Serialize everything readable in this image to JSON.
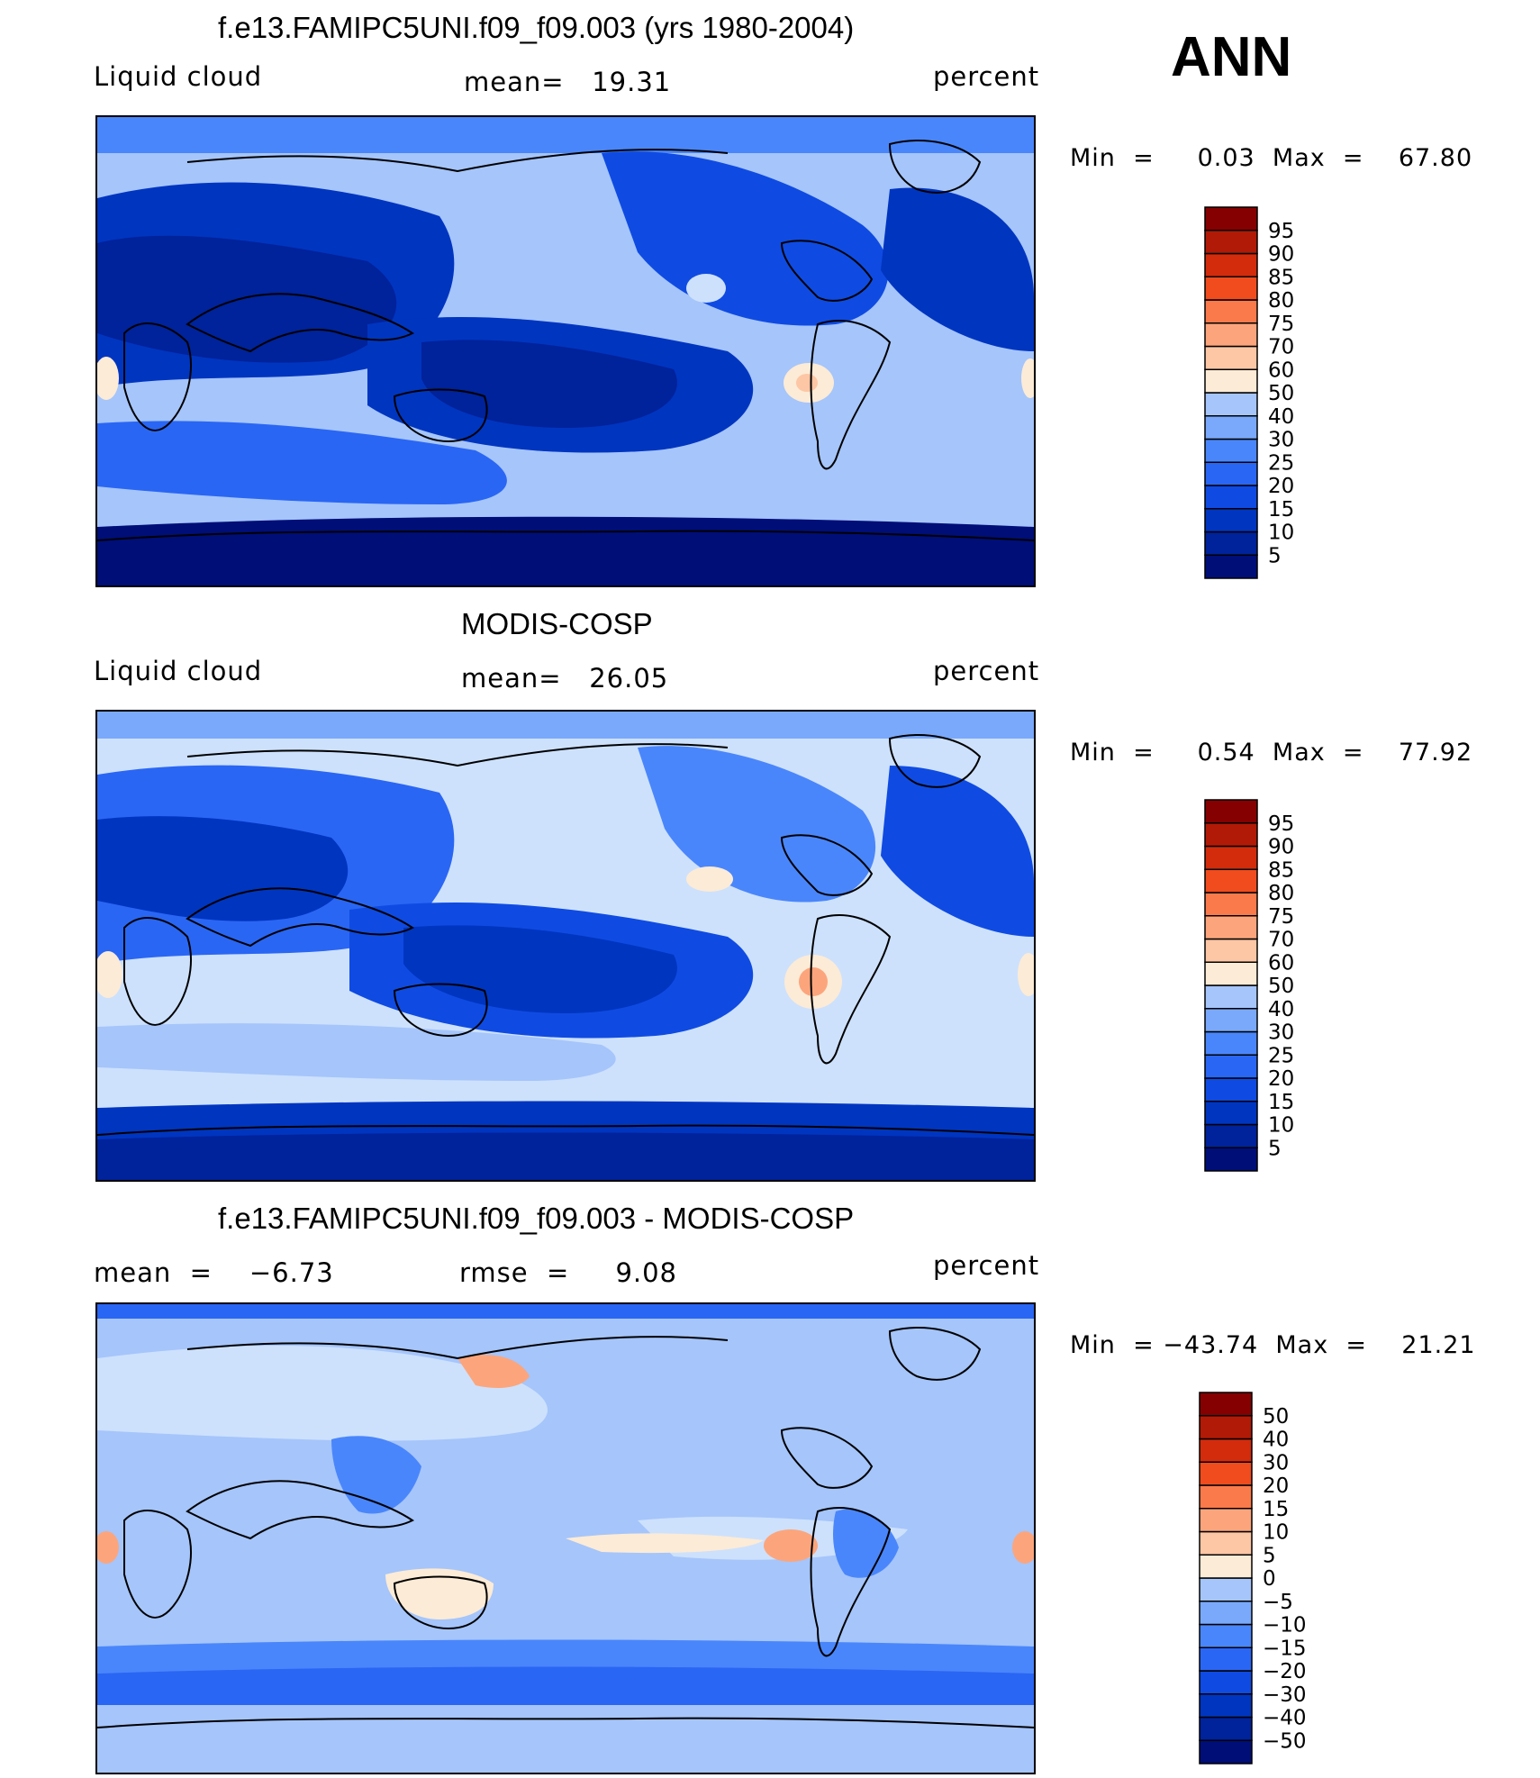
{
  "figure": {
    "season": "ANN",
    "colors": {
      "abs_scale": [
        "#000e78",
        "#00229a",
        "#0035c0",
        "#0f4be2",
        "#2a66f4",
        "#4a86fb",
        "#7aa9fb",
        "#a5c5fb",
        "#cde1fd",
        "#fcebd6",
        "#fdc6a4",
        "#fca57c",
        "#fb7a4b",
        "#f04c1d",
        "#d22c0c",
        "#b11a06",
        "#850000"
      ],
      "diff_scale": [
        "#000e78",
        "#00229a",
        "#0035c0",
        "#0f4be2",
        "#2a66f4",
        "#4a86fb",
        "#7aa9fb",
        "#a5c5fb",
        "#cde1fd",
        "#fcebd6",
        "#fdc6a4",
        "#fca57c",
        "#fb7a4b",
        "#f04c1d",
        "#d22c0c",
        "#b11a06",
        "#850000"
      ],
      "coastline": "#000000"
    }
  },
  "panels": [
    {
      "title": "f.e13.FAMIPC5UNI.f09_f09.003 (yrs 1980-2004)",
      "left_label": "Liquid cloud",
      "center_label": "mean=   19.31",
      "right_label": "percent",
      "minmax": "Min  =     0.03  Max  =    67.80",
      "colorbar_ticks": [
        "95",
        "90",
        "85",
        "80",
        "75",
        "70",
        "60",
        "50",
        "40",
        "30",
        "25",
        "20",
        "15",
        "10",
        "5"
      ]
    },
    {
      "title": "MODIS-COSP",
      "left_label": "Liquid cloud",
      "center_label": "mean=   26.05",
      "right_label": "percent",
      "minmax": "Min  =     0.54  Max  =    77.92",
      "colorbar_ticks": [
        "95",
        "90",
        "85",
        "80",
        "75",
        "70",
        "60",
        "50",
        "40",
        "30",
        "25",
        "20",
        "15",
        "10",
        "5"
      ]
    },
    {
      "title": "f.e13.FAMIPC5UNI.f09_f09.003 - MODIS-COSP",
      "left_label": "mean  =    −6.73",
      "center_label": "rmse  =     9.08",
      "right_label": "percent",
      "minmax": "Min  = −43.74  Max  =    21.21",
      "colorbar_ticks": [
        "50",
        "40",
        "30",
        "20",
        "15",
        "10",
        "5",
        "0",
        "−5",
        "−10",
        "−15",
        "−20",
        "−30",
        "−40",
        "−50"
      ]
    }
  ],
  "chart_data": [
    {
      "type": "heatmap",
      "title": "f.e13.FAMIPC5UNI.f09_f09.003 (yrs 1980-2004)",
      "variable": "Liquid cloud",
      "units": "percent",
      "mean": 19.31,
      "min": 0.03,
      "max": 67.8,
      "contour_levels": [
        5,
        10,
        15,
        20,
        25,
        30,
        40,
        50,
        60,
        70,
        75,
        80,
        85,
        90,
        95
      ]
    },
    {
      "type": "heatmap",
      "title": "MODIS-COSP",
      "variable": "Liquid cloud",
      "units": "percent",
      "mean": 26.05,
      "min": 0.54,
      "max": 77.92,
      "contour_levels": [
        5,
        10,
        15,
        20,
        25,
        30,
        40,
        50,
        60,
        70,
        75,
        80,
        85,
        90,
        95
      ]
    },
    {
      "type": "heatmap",
      "title": "f.e13.FAMIPC5UNI.f09_f09.003 - MODIS-COSP",
      "units": "percent",
      "mean": -6.73,
      "rmse": 9.08,
      "min": -43.74,
      "max": 21.21,
      "contour_levels": [
        -50,
        -40,
        -30,
        -20,
        -15,
        -10,
        -5,
        0,
        5,
        10,
        15,
        20,
        30,
        40,
        50
      ]
    }
  ]
}
